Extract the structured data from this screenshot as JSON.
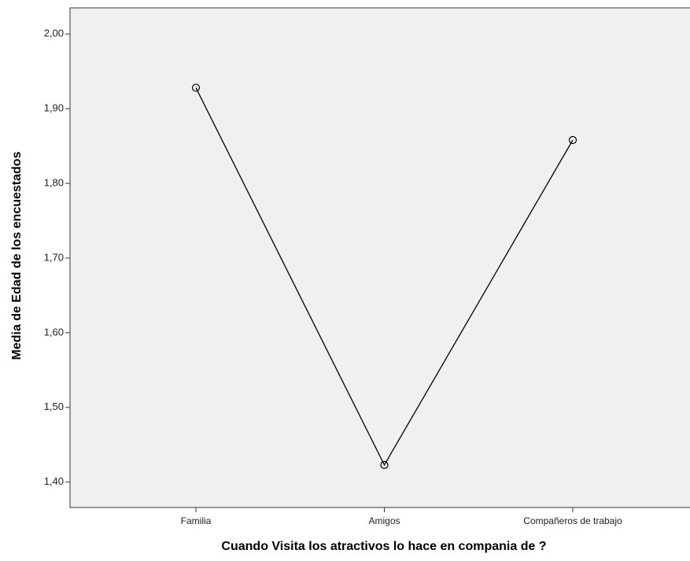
{
  "chart_data": {
    "type": "line",
    "categories": [
      "Familia",
      "Amigos",
      "Compañeros de trabajo"
    ],
    "values": [
      1.928,
      1.423,
      1.858
    ],
    "color": "#000000",
    "x_label": "Cuando Visita los atractivos lo hace en compania de ?",
    "y_label": "Media de Edad de los encuestados",
    "ylim": [
      1.366,
      2.035
    ],
    "yticks": [
      {
        "value": 1.4,
        "label": "1,40"
      },
      {
        "value": 1.5,
        "label": "1,50"
      },
      {
        "value": 1.6,
        "label": "1,60"
      },
      {
        "value": 1.7,
        "label": "1,70"
      },
      {
        "value": 1.8,
        "label": "1,80"
      },
      {
        "value": 1.9,
        "label": "1,90"
      },
      {
        "value": 2.0,
        "label": "2,00"
      }
    ],
    "grid": false,
    "markers": true
  }
}
